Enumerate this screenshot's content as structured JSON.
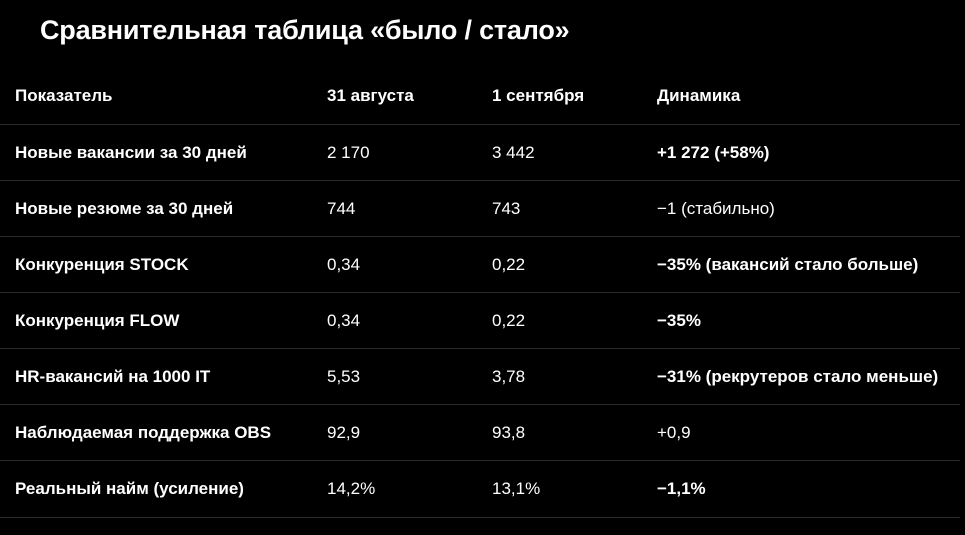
{
  "title": "Сравнительная таблица «было / стало»",
  "table": {
    "headers": [
      "Показатель",
      "31 августа",
      "1 сентября",
      "Динамика"
    ],
    "rows": [
      {
        "metric": "Новые вакансии за 30 дней",
        "aug31": "2 170",
        "sep1": "3 442",
        "change": "+1 272 (+58%)",
        "change_bold": true
      },
      {
        "metric": "Новые резюме за 30 дней",
        "aug31": "744",
        "sep1": "743",
        "change": "−1 (стабильно)",
        "change_bold": false
      },
      {
        "metric": "Конкуренция STOCK",
        "aug31": "0,34",
        "sep1": "0,22",
        "change": "−35% (вакансий стало больше)",
        "change_bold": true
      },
      {
        "metric": "Конкуренция FLOW",
        "aug31": "0,34",
        "sep1": "0,22",
        "change": "−35%",
        "change_bold": true
      },
      {
        "metric": "HR-вакансий на 1000 IT",
        "aug31": "5,53",
        "sep1": "3,78",
        "change": "−31% (рекрутеров стало меньше)",
        "change_bold": true
      },
      {
        "metric": "Наблюдаемая поддержка OBS",
        "aug31": "92,9",
        "sep1": "93,8",
        "change": "+0,9",
        "change_bold": false
      },
      {
        "metric": "Реальный найм (усиление)",
        "aug31": "14,2%",
        "sep1": "13,1%",
        "change": "−1,1%",
        "change_bold": true
      }
    ]
  },
  "colors": {
    "background": "#000000",
    "text": "#ffffff",
    "divider": "#2a2a2a"
  }
}
